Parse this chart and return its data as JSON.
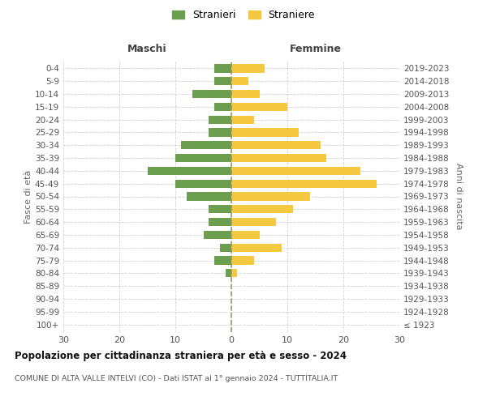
{
  "age_groups": [
    "100+",
    "95-99",
    "90-94",
    "85-89",
    "80-84",
    "75-79",
    "70-74",
    "65-69",
    "60-64",
    "55-59",
    "50-54",
    "45-49",
    "40-44",
    "35-39",
    "30-34",
    "25-29",
    "20-24",
    "15-19",
    "10-14",
    "5-9",
    "0-4"
  ],
  "birth_years": [
    "≤ 1923",
    "1924-1928",
    "1929-1933",
    "1934-1938",
    "1939-1943",
    "1944-1948",
    "1949-1953",
    "1954-1958",
    "1959-1963",
    "1964-1968",
    "1969-1973",
    "1974-1978",
    "1979-1983",
    "1984-1988",
    "1989-1993",
    "1994-1998",
    "1999-2003",
    "2004-2008",
    "2009-2013",
    "2014-2018",
    "2019-2023"
  ],
  "males": [
    0,
    0,
    0,
    0,
    1,
    3,
    2,
    5,
    4,
    4,
    8,
    10,
    15,
    10,
    9,
    4,
    4,
    3,
    7,
    3,
    3
  ],
  "females": [
    0,
    0,
    0,
    0,
    1,
    4,
    9,
    5,
    8,
    11,
    14,
    26,
    23,
    17,
    16,
    12,
    4,
    10,
    5,
    3,
    6
  ],
  "male_color": "#6b9e4e",
  "female_color": "#f5c842",
  "title": "Popolazione per cittadinanza straniera per età e sesso - 2024",
  "subtitle": "COMUNE DI ALTA VALLE INTELVI (CO) - Dati ISTAT al 1° gennaio 2024 - TUTTITALIA.IT",
  "ylabel_left": "Fasce di età",
  "ylabel_right": "Anni di nascita",
  "xlabel_left": "Maschi",
  "xlabel_right": "Femmine",
  "legend_stranieri": "Stranieri",
  "legend_straniere": "Straniere",
  "xlim": 30,
  "background_color": "#ffffff",
  "grid_color": "#cccccc",
  "center_line_color": "#999966"
}
